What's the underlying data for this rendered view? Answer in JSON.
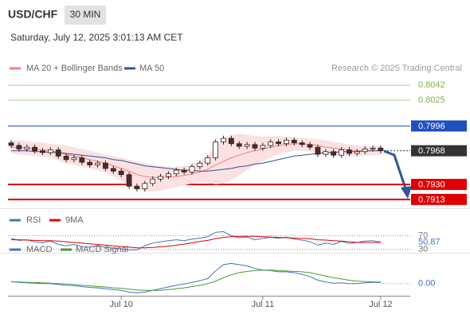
{
  "chart_data": [
    {
      "type": "candlestick",
      "title": "USD/CHF",
      "timeframe": "30 MIN",
      "subtitle": "Saturday, July 12, 2025 3:01:13 AM CET",
      "source": "Research © 2025 Trading Central",
      "categories": [
        null,
        null,
        null,
        null,
        null,
        null,
        null,
        null,
        null,
        null,
        null,
        null,
        null,
        null,
        "Jul 10",
        null,
        null,
        null,
        null,
        null,
        null,
        null,
        null,
        null,
        null,
        null,
        null,
        null,
        null,
        null,
        null,
        null,
        "Jul 11",
        null,
        null,
        null,
        null,
        null,
        null,
        null,
        null,
        null,
        null,
        null,
        null,
        null,
        null,
        "Jul 12"
      ],
      "open": [
        0.7977,
        0.7974,
        0.797,
        0.7972,
        0.7968,
        0.7966,
        0.7969,
        0.7962,
        0.7958,
        0.796,
        0.7955,
        0.7952,
        0.7954,
        0.7948,
        0.7945,
        0.7941,
        0.7928,
        0.7925,
        0.7931,
        0.7936,
        0.7939,
        0.7942,
        0.7946,
        0.7944,
        0.795,
        0.7954,
        0.796,
        0.7978,
        0.7982,
        0.7976,
        0.7973,
        0.7975,
        0.7971,
        0.7974,
        0.7978,
        0.7976,
        0.798,
        0.7977,
        0.7975,
        0.7972,
        0.7964,
        0.7967,
        0.7963,
        0.7969,
        0.7965,
        0.7967,
        0.797,
        0.7971
      ],
      "high": [
        0.798,
        0.7977,
        0.7975,
        0.7975,
        0.7971,
        0.7972,
        0.7972,
        0.7965,
        0.7963,
        0.7963,
        0.7958,
        0.7957,
        0.7957,
        0.7951,
        0.7948,
        0.7944,
        0.7931,
        0.7934,
        0.7939,
        0.7942,
        0.7945,
        0.7949,
        0.7949,
        0.7953,
        0.7957,
        0.7963,
        0.7981,
        0.7985,
        0.7985,
        0.7979,
        0.7978,
        0.7978,
        0.7977,
        0.7981,
        0.7981,
        0.7983,
        0.7983,
        0.798,
        0.7978,
        0.7975,
        0.797,
        0.797,
        0.7972,
        0.7972,
        0.797,
        0.7973,
        0.7974,
        0.7974
      ],
      "low": [
        0.7971,
        0.7967,
        0.7967,
        0.7965,
        0.7963,
        0.7963,
        0.7959,
        0.7955,
        0.7955,
        0.7952,
        0.7949,
        0.7949,
        0.7945,
        0.7942,
        0.7938,
        0.7925,
        0.7922,
        0.7922,
        0.7928,
        0.7933,
        0.7936,
        0.7939,
        0.7941,
        0.7941,
        0.7947,
        0.7951,
        0.7957,
        0.7975,
        0.7973,
        0.797,
        0.797,
        0.7968,
        0.7968,
        0.7971,
        0.7973,
        0.7973,
        0.7974,
        0.7972,
        0.7969,
        0.7961,
        0.7961,
        0.796,
        0.796,
        0.7962,
        0.7962,
        0.7964,
        0.7967,
        0.7965
      ],
      "close": [
        0.7974,
        0.797,
        0.7972,
        0.7968,
        0.7966,
        0.7969,
        0.7962,
        0.7958,
        0.796,
        0.7955,
        0.7952,
        0.7954,
        0.7948,
        0.7945,
        0.7941,
        0.7928,
        0.7925,
        0.7931,
        0.7936,
        0.7939,
        0.7942,
        0.7946,
        0.7944,
        0.795,
        0.7954,
        0.796,
        0.7978,
        0.7982,
        0.7976,
        0.7973,
        0.7975,
        0.7971,
        0.7974,
        0.7978,
        0.7976,
        0.798,
        0.7977,
        0.7975,
        0.7972,
        0.7964,
        0.7967,
        0.7963,
        0.7969,
        0.7965,
        0.7967,
        0.797,
        0.7971,
        0.7968
      ],
      "up_color": "#ffffff",
      "down_color": "#4a2a2a",
      "outline_color": "#3a2020",
      "series": [
        {
          "name": "MA 20 + Bollinger Bands",
          "color": "#f08080",
          "band_color": "#fbe1e1",
          "values": [
            0.7972,
            0.7972,
            0.7971,
            0.797,
            0.7969,
            0.7968,
            0.7966,
            0.7964,
            0.7962,
            0.796,
            0.7958,
            0.7956,
            0.7954,
            0.7951,
            0.7948,
            0.7945,
            0.7941,
            0.7939,
            0.7938,
            0.7938,
            0.7938,
            0.7939,
            0.794,
            0.7942,
            0.7944,
            0.7947,
            0.7952,
            0.7956,
            0.796,
            0.7963,
            0.7966,
            0.7968,
            0.797,
            0.7972,
            0.7974,
            0.7975,
            0.7976,
            0.7976,
            0.7975,
            0.7974,
            0.7972,
            0.7971,
            0.797,
            0.7969,
            0.7968,
            0.7968,
            0.7968,
            0.7968
          ],
          "upper": [
            0.7979,
            0.798,
            0.7979,
            0.7978,
            0.7977,
            0.7976,
            0.7975,
            0.7974,
            0.7972,
            0.797,
            0.7968,
            0.7966,
            0.7964,
            0.7962,
            0.796,
            0.7958,
            0.7956,
            0.7954,
            0.7952,
            0.7951,
            0.795,
            0.795,
            0.7951,
            0.7953,
            0.7956,
            0.7962,
            0.7975,
            0.7982,
            0.7986,
            0.7987,
            0.7986,
            0.7985,
            0.7984,
            0.7984,
            0.7984,
            0.7984,
            0.7983,
            0.7983,
            0.7982,
            0.7981,
            0.798,
            0.7978,
            0.7977,
            0.7975,
            0.7974,
            0.7973,
            0.7973,
            0.7973
          ],
          "lower": [
            0.7965,
            0.7964,
            0.7963,
            0.7962,
            0.7961,
            0.796,
            0.7957,
            0.7954,
            0.7952,
            0.795,
            0.7948,
            0.7946,
            0.7943,
            0.7939,
            0.7934,
            0.7928,
            0.7924,
            0.7922,
            0.7922,
            0.7923,
            0.7925,
            0.7927,
            0.7929,
            0.7931,
            0.7932,
            0.7932,
            0.793,
            0.7931,
            0.7935,
            0.794,
            0.7946,
            0.7952,
            0.7956,
            0.796,
            0.7964,
            0.7966,
            0.7968,
            0.7968,
            0.7967,
            0.7966,
            0.7964,
            0.7963,
            0.7963,
            0.7962,
            0.7962,
            0.7962,
            0.7963,
            0.7963
          ]
        },
        {
          "name": "MA 50",
          "color": "#2f5597",
          "values": [
            0.7968,
            0.7968,
            0.7968,
            0.7967,
            0.7967,
            0.7966,
            0.7966,
            0.7965,
            0.7964,
            0.7963,
            0.7962,
            0.7961,
            0.796,
            0.7958,
            0.7957,
            0.7955,
            0.7953,
            0.7951,
            0.795,
            0.7949,
            0.7948,
            0.7947,
            0.7946,
            0.7946,
            0.7945,
            0.7945,
            0.7946,
            0.7947,
            0.7948,
            0.795,
            0.7951,
            0.7953,
            0.7954,
            0.7956,
            0.7958,
            0.796,
            0.7962,
            0.7963,
            0.7964,
            0.7965,
            0.7966,
            0.7966,
            0.7967,
            0.7967,
            0.7967,
            0.7968,
            0.7968,
            0.7968
          ]
        }
      ],
      "levels": [
        {
          "value": 0.8042,
          "color": "#7ab648",
          "boxed": false,
          "style": "solid"
        },
        {
          "value": 0.8025,
          "color": "#7ab648",
          "boxed": false,
          "style": "solid"
        },
        {
          "value": 0.7996,
          "color": "#1f4fbf",
          "boxed": true,
          "style": "solid"
        },
        {
          "value": 0.7968,
          "color": "#333333",
          "boxed": true,
          "style": "dotted"
        },
        {
          "value": 0.793,
          "label": "0.7930",
          "color": "#e00000",
          "boxed": true,
          "style": "solid"
        },
        {
          "value": 0.7913,
          "color": "#e00000",
          "boxed": true,
          "style": "solid"
        }
      ],
      "ylim": [
        0.7903,
        0.8053
      ]
    },
    {
      "type": "line",
      "series": [
        {
          "name": "RSI",
          "color": "#4472c4",
          "values": [
            62,
            56,
            58,
            52,
            49,
            54,
            44,
            40,
            44,
            38,
            36,
            41,
            35,
            33,
            31,
            28,
            28,
            40,
            48,
            52,
            55,
            58,
            55,
            60,
            63,
            67,
            80,
            82,
            70,
            64,
            66,
            58,
            62,
            66,
            62,
            66,
            60,
            57,
            52,
            42,
            48,
            44,
            53,
            47,
            50,
            54,
            55,
            50.87
          ]
        },
        {
          "name": "9MA",
          "color": "#e00000",
          "values": [
            58,
            58,
            57,
            56,
            55,
            55,
            54,
            52,
            50,
            48,
            46,
            44,
            42,
            40,
            38,
            36,
            34,
            34,
            35,
            37,
            39,
            42,
            45,
            49,
            53,
            56,
            61,
            65,
            67,
            68,
            68,
            68,
            67,
            66,
            65,
            64,
            63,
            62,
            61,
            58,
            57,
            55,
            54,
            52,
            50,
            50,
            50,
            50
          ]
        }
      ],
      "ylim": [
        24,
        90
      ],
      "yticks": [
        30,
        70
      ]
    },
    {
      "type": "line",
      "series": [
        {
          "name": "MACD",
          "color": "#4472c4",
          "values": [
            5e-05,
            3e-05,
            2e-05,
            1e-05,
            0,
            0,
            -2e-05,
            -4e-05,
            -5e-05,
            -7e-05,
            -9e-05,
            -0.0001,
            -0.00012,
            -0.00014,
            -0.00016,
            -0.0002,
            -0.00022,
            -0.0002,
            -0.00016,
            -0.00012,
            -8e-05,
            -4e-05,
            -1e-05,
            3e-05,
            7e-05,
            0.00012,
            0.0003,
            0.00045,
            0.00048,
            0.00045,
            0.00042,
            0.00036,
            0.00032,
            0.00031,
            0.00028,
            0.00028,
            0.00026,
            0.00022,
            0.00017,
            8e-05,
            4e-05,
            1e-05,
            2e-05,
            0,
            0,
            2e-05,
            3e-05,
            3e-05
          ]
        },
        {
          "name": "MACD Signal",
          "color": "#4a9a2a",
          "values": [
            4e-05,
            4e-05,
            3e-05,
            3e-05,
            2e-05,
            1e-05,
            0,
            -1e-05,
            -2e-05,
            -4e-05,
            -5e-05,
            -7e-05,
            -8e-05,
            -0.0001,
            -0.00011,
            -0.00013,
            -0.00015,
            -0.00016,
            -0.00016,
            -0.00016,
            -0.00014,
            -0.00012,
            -0.0001,
            -7e-05,
            -4e-05,
            0,
            6e-05,
            0.00014,
            0.00021,
            0.00026,
            0.00029,
            0.00031,
            0.00032,
            0.00032,
            0.00031,
            0.0003,
            0.00029,
            0.00028,
            0.00026,
            0.00022,
            0.00018,
            0.00014,
            0.00011,
            8e-05,
            6e-05,
            5e-05,
            4e-05,
            4e-05
          ]
        }
      ],
      "ylim": [
        -0.00025,
        0.0006
      ],
      "yticks": [
        {
          "value": 0,
          "label": "0.00"
        }
      ]
    }
  ]
}
